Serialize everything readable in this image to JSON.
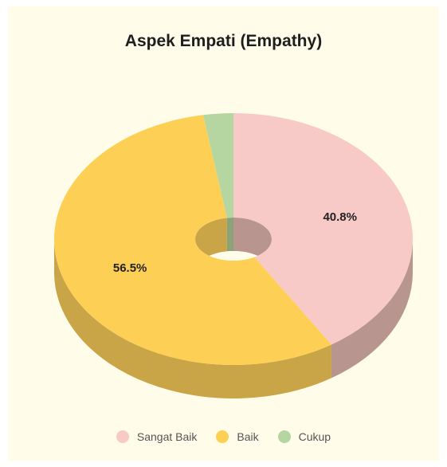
{
  "chart_data": {
    "type": "pie",
    "title": "Aspek Empati (Empathy)",
    "categories": [
      "Sangat Baik",
      "Baik",
      "Cukup"
    ],
    "values": [
      40.8,
      56.5,
      2.7
    ],
    "value_labels": [
      "40.8%",
      "56.5%",
      ""
    ],
    "colors": [
      "#f7cac8",
      "#fdd055",
      "#b5d6a0"
    ],
    "side_colors": [
      "#b8958f",
      "#c9a548",
      "#8ea27a"
    ],
    "donut": true,
    "three_d": true,
    "legend_position": "bottom"
  }
}
